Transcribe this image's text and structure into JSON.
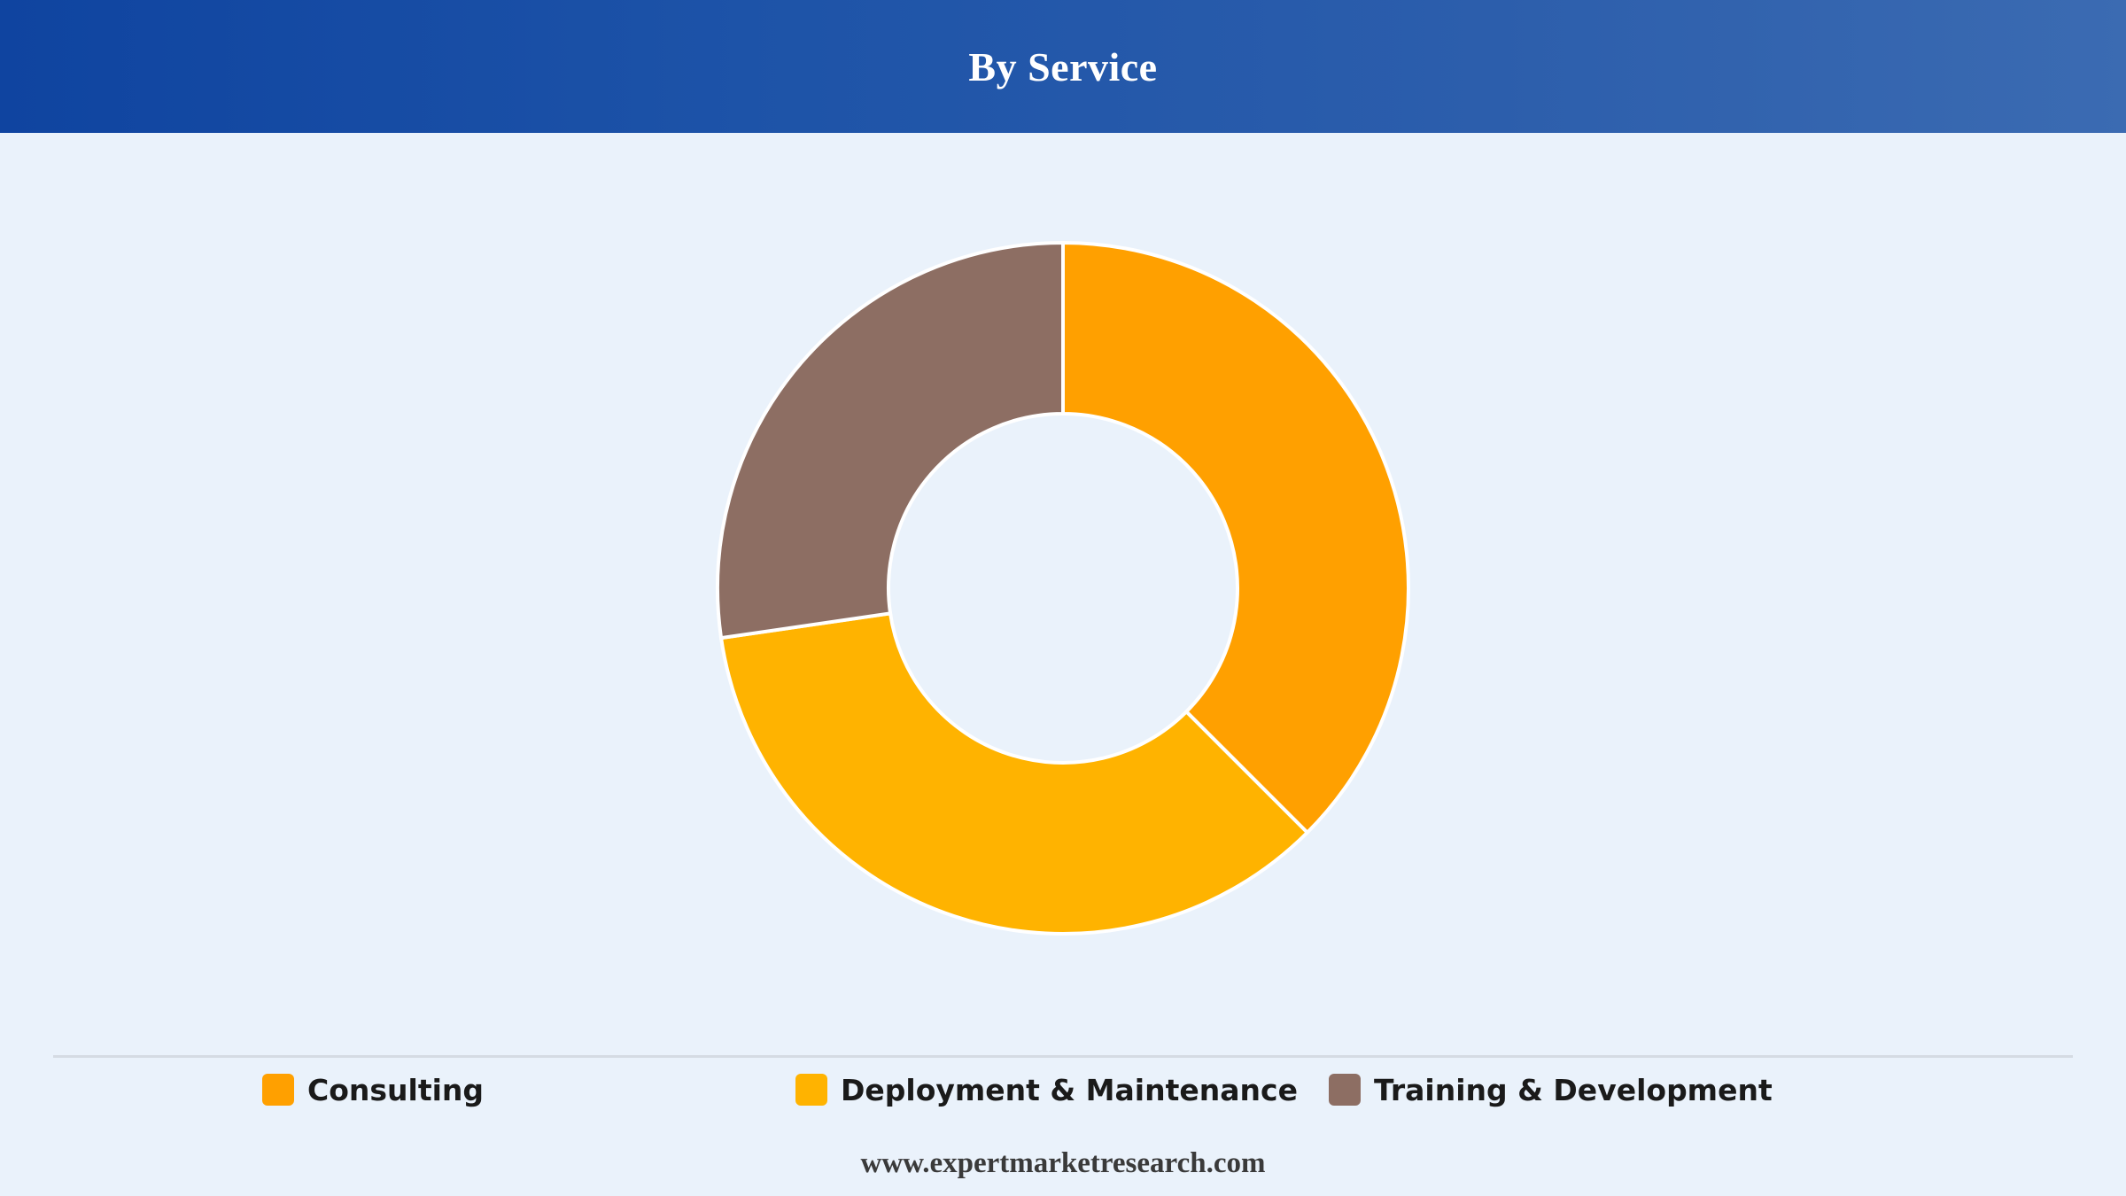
{
  "header": {
    "title": "By Service"
  },
  "chart_data": {
    "type": "pie",
    "title": "By Service",
    "donut": true,
    "categories": [
      "Consulting",
      "Deployment & Maintenance",
      "Training & Development"
    ],
    "values": [
      37.5,
      35.2,
      27.3
    ],
    "unit": "%",
    "colors": [
      "#ffa000",
      "#ffb300",
      "#8d6e63"
    ],
    "legend_position": "bottom"
  },
  "legend": {
    "items": [
      {
        "label": "Consulting",
        "color": "#ffa000"
      },
      {
        "label": "Deployment & Maintenance",
        "color": "#ffb300"
      },
      {
        "label": "Training & Development",
        "color": "#8d6e63"
      }
    ]
  },
  "footer": {
    "text": "www.expertmarketresearch.com"
  }
}
